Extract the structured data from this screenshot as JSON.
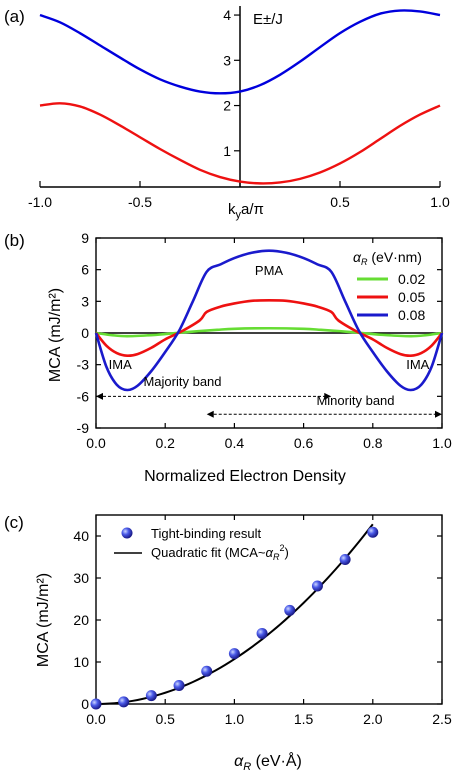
{
  "panels": {
    "a": {
      "label": "(a)"
    },
    "b": {
      "label": "(b)"
    },
    "c": {
      "label": "(c)"
    }
  },
  "chart_data": [
    {
      "id": "a",
      "type": "line",
      "xlabel": "k",
      "xlabel_sub": "y",
      "xlabel_rest": "a/π",
      "ylabel": "E±/J",
      "xlim": [
        -1.0,
        1.0
      ],
      "ylim": [
        0.2,
        4.2
      ],
      "xticks": [
        -1.0,
        -0.5,
        0.0,
        0.5,
        1.0
      ],
      "xticklabels": [
        "-1.0",
        "-0.5",
        "",
        "0.5",
        "1.0"
      ],
      "yticks": [
        1,
        2,
        3,
        4
      ],
      "yticklabels": [
        "1",
        "2",
        "3",
        "4"
      ],
      "series": [
        {
          "color": "#0000dd",
          "x": [
            -1.0,
            -0.9,
            -0.8,
            -0.7,
            -0.6,
            -0.5,
            -0.4,
            -0.3,
            -0.2,
            -0.1,
            0.0,
            0.1,
            0.2,
            0.3,
            0.4,
            0.5,
            0.6,
            0.7,
            0.8,
            0.9,
            1.0
          ],
          "y": [
            4.0,
            3.84,
            3.6,
            3.33,
            3.06,
            2.8,
            2.58,
            2.42,
            2.31,
            2.27,
            2.31,
            2.45,
            2.68,
            2.97,
            3.29,
            3.6,
            3.85,
            4.03,
            4.1,
            4.08,
            4.0
          ]
        },
        {
          "color": "#ee1111",
          "x": [
            -1.0,
            -0.9,
            -0.8,
            -0.7,
            -0.6,
            -0.5,
            -0.4,
            -0.3,
            -0.2,
            -0.1,
            0.0,
            0.1,
            0.2,
            0.3,
            0.4,
            0.5,
            0.6,
            0.7,
            0.8,
            0.9,
            1.0
          ],
          "y": [
            2.0,
            2.05,
            1.98,
            1.8,
            1.56,
            1.3,
            1.04,
            0.8,
            0.58,
            0.42,
            0.32,
            0.28,
            0.3,
            0.38,
            0.52,
            0.72,
            0.97,
            1.26,
            1.55,
            1.8,
            2.0
          ]
        }
      ]
    },
    {
      "id": "b",
      "type": "line",
      "xlabel": "Normalized Electron Density",
      "ylabel": "MCA (mJ/m²)",
      "xlim": [
        0.0,
        1.0
      ],
      "ylim": [
        -9,
        9
      ],
      "xticks": [
        0.0,
        0.2,
        0.4,
        0.6,
        0.8,
        1.0
      ],
      "xticklabels": [
        "0.0",
        "0.2",
        "0.4",
        "0.6",
        "0.8",
        "1.0"
      ],
      "yticks": [
        -9,
        -6,
        -3,
        0,
        3,
        6,
        9
      ],
      "yticklabels": [
        "-9",
        "-6",
        "-3",
        "0",
        "3",
        "6",
        "9"
      ],
      "legend_title": "α_R (eV·nm)",
      "legend_title_a": "α",
      "legend_title_sub": "R",
      "legend_title_rest": " (eV·nm)",
      "legend_position": "top-right",
      "series": [
        {
          "name": "0.02",
          "color": "#66dd33",
          "x": [
            0.0,
            0.05,
            0.09,
            0.15,
            0.2,
            0.25,
            0.3,
            0.35,
            0.4,
            0.5,
            0.6,
            0.65,
            0.7,
            0.75,
            0.8,
            0.85,
            0.91,
            0.95,
            1.0
          ],
          "y": [
            0.0,
            -0.22,
            -0.3,
            -0.22,
            -0.1,
            0.05,
            0.18,
            0.3,
            0.4,
            0.45,
            0.4,
            0.3,
            0.18,
            0.05,
            -0.1,
            -0.22,
            -0.3,
            -0.22,
            0.0
          ]
        },
        {
          "name": "0.05",
          "color": "#ee1111",
          "x": [
            0.0,
            0.03,
            0.06,
            0.09,
            0.12,
            0.16,
            0.2,
            0.25,
            0.3,
            0.32,
            0.36,
            0.4,
            0.45,
            0.5,
            0.55,
            0.6,
            0.64,
            0.68,
            0.7,
            0.75,
            0.8,
            0.84,
            0.88,
            0.91,
            0.94,
            0.97,
            1.0
          ],
          "y": [
            0.0,
            -1.2,
            -1.9,
            -2.15,
            -2.0,
            -1.4,
            -0.6,
            0.2,
            1.2,
            2.0,
            2.5,
            2.8,
            3.05,
            3.1,
            3.05,
            2.8,
            2.5,
            2.0,
            1.2,
            0.2,
            -0.6,
            -1.4,
            -2.0,
            -2.15,
            -1.9,
            -1.2,
            0.0
          ]
        },
        {
          "name": "0.08",
          "color": "#1a1acc",
          "x": [
            0.0,
            0.03,
            0.06,
            0.09,
            0.12,
            0.16,
            0.2,
            0.24,
            0.28,
            0.32,
            0.36,
            0.4,
            0.45,
            0.5,
            0.55,
            0.6,
            0.64,
            0.68,
            0.72,
            0.76,
            0.8,
            0.84,
            0.88,
            0.91,
            0.94,
            0.97,
            1.0
          ],
          "y": [
            0.0,
            -3.2,
            -4.9,
            -5.4,
            -5.0,
            -3.6,
            -1.8,
            0.2,
            3.0,
            5.8,
            6.5,
            7.1,
            7.6,
            7.8,
            7.6,
            7.1,
            6.5,
            5.8,
            3.0,
            0.2,
            -1.8,
            -3.6,
            -5.0,
            -5.4,
            -4.9,
            -3.2,
            0.0
          ]
        }
      ],
      "annotations": [
        {
          "text": "PMA",
          "x": 0.5,
          "y": 5.5
        },
        {
          "text": "IMA",
          "x": 0.07,
          "y": -3.4
        },
        {
          "text": "IMA",
          "x": 0.93,
          "y": -3.4
        }
      ],
      "arrows": [
        {
          "text": "Majority band",
          "x0": 0.0,
          "x1": 0.68,
          "y": -6.0,
          "text_x": 0.25,
          "text_y": -5.0
        },
        {
          "text": "Minority band",
          "x0": 0.32,
          "x1": 1.0,
          "y": -7.7,
          "text_x": 0.75,
          "text_y": -6.8
        }
      ]
    },
    {
      "id": "c",
      "type": "scatter",
      "xlabel": "α_R (eV·Å)",
      "xlabel_a": "α",
      "xlabel_sub": "R",
      "xlabel_rest": " (eV·Å)",
      "ylabel": "MCA (mJ/m²)",
      "xlim": [
        0.0,
        2.5
      ],
      "ylim": [
        0,
        45
      ],
      "xticks": [
        0.0,
        0.5,
        1.0,
        1.5,
        2.0,
        2.5
      ],
      "xticklabels": [
        "0.0",
        "0.5",
        "1.0",
        "1.5",
        "2.0",
        "2.5"
      ],
      "yticks": [
        0,
        10,
        20,
        30,
        40
      ],
      "yticklabels": [
        "0",
        "10",
        "20",
        "30",
        "40"
      ],
      "legend_position": "top-left",
      "series": [
        {
          "name": "Tight-binding result",
          "color": "#3344dd",
          "marker": "sphere",
          "x": [
            0.0,
            0.2,
            0.4,
            0.6,
            0.8,
            1.0,
            1.2,
            1.4,
            1.6,
            1.8,
            2.0
          ],
          "y": [
            0.0,
            0.5,
            2.0,
            4.4,
            7.8,
            12.0,
            16.8,
            22.3,
            28.1,
            34.4,
            40.9
          ]
        },
        {
          "name_a": "Quadratic fit (MCA~",
          "name_b": "α",
          "name_c": "R",
          "name_d": "2",
          "name_e": ")",
          "name": "Quadratic fit (MCA~α_R²)",
          "color": "#000000",
          "fit": "quadratic",
          "coef": 10.7,
          "x0": 0.0,
          "x1": 2.0
        }
      ]
    }
  ]
}
